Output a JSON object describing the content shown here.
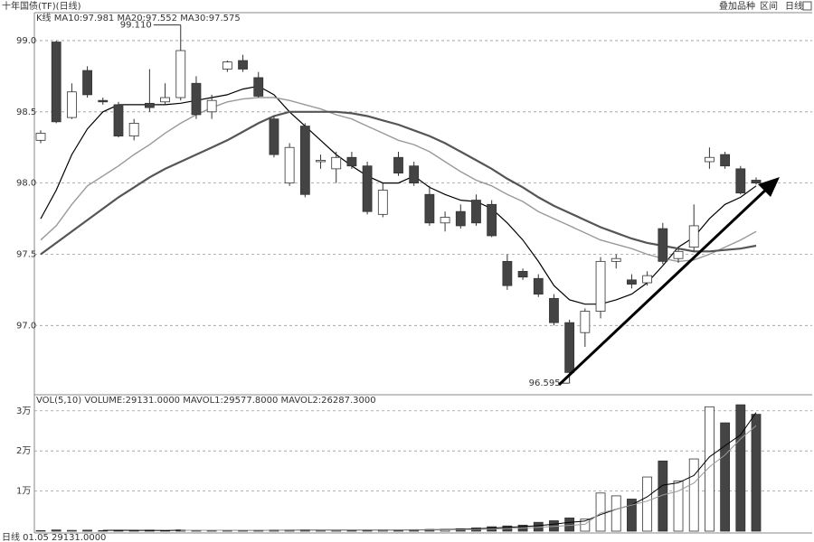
{
  "toolbar": [
    "叠加品种",
    "区间",
    "日线"
  ],
  "footer": "日线 01.05 29131.0000",
  "chart_data": [
    {
      "type": "candlestick",
      "title": "十年国债(TF)(日线)",
      "subtitle": "K线 MA10:97.981 MA20:97.552 MA30:97.575",
      "high_label": "99.110",
      "low_label": "96.595",
      "up_color": "#ffffff",
      "down_color": "#444444",
      "open": [
        98.3,
        98.99,
        98.46,
        98.79,
        98.58,
        98.55,
        98.33,
        98.56,
        98.57,
        98.6,
        98.7,
        98.5,
        98.8,
        98.86,
        98.74,
        98.45,
        98.0,
        98.4,
        98.15,
        98.1,
        98.18,
        98.12,
        97.78,
        98.18,
        98.12,
        97.92,
        97.72,
        97.8,
        97.88,
        97.85,
        97.45,
        97.38,
        97.33,
        97.19,
        97.02,
        96.95,
        97.1,
        97.45,
        97.32,
        97.3,
        97.68,
        97.47,
        97.55,
        98.15,
        98.2,
        98.1,
        98.02
      ],
      "high": [
        98.37,
        99.0,
        98.7,
        98.82,
        98.6,
        98.57,
        98.45,
        98.8,
        98.7,
        99.11,
        98.75,
        98.62,
        98.86,
        98.9,
        98.78,
        98.47,
        98.28,
        98.42,
        98.2,
        98.22,
        98.22,
        98.15,
        98.0,
        98.22,
        98.15,
        97.98,
        97.8,
        97.85,
        97.92,
        97.88,
        97.5,
        97.4,
        97.36,
        97.22,
        97.04,
        97.12,
        97.48,
        97.5,
        97.36,
        97.38,
        97.72,
        97.55,
        97.85,
        98.25,
        98.22,
        98.12,
        98.04
      ],
      "low": [
        98.28,
        98.42,
        98.45,
        98.6,
        98.55,
        98.32,
        98.3,
        98.5,
        98.55,
        98.58,
        98.45,
        98.45,
        98.78,
        98.78,
        98.6,
        98.18,
        97.98,
        97.9,
        98.1,
        98.0,
        98.1,
        97.78,
        97.76,
        98.05,
        97.98,
        97.7,
        97.66,
        97.68,
        97.7,
        97.62,
        97.25,
        97.32,
        97.2,
        97.0,
        96.595,
        96.85,
        97.05,
        97.4,
        97.26,
        97.28,
        97.43,
        97.44,
        97.52,
        98.1,
        98.1,
        97.92,
        97.99
      ],
      "close": [
        98.35,
        98.43,
        98.64,
        98.62,
        98.57,
        98.33,
        98.42,
        98.53,
        98.6,
        98.93,
        98.48,
        98.58,
        98.85,
        98.8,
        98.61,
        98.2,
        98.25,
        97.92,
        98.16,
        98.18,
        98.12,
        97.8,
        97.95,
        98.07,
        98.0,
        97.72,
        97.76,
        97.7,
        97.72,
        97.63,
        97.28,
        97.34,
        97.22,
        97.02,
        96.67,
        97.1,
        97.45,
        97.47,
        97.29,
        97.35,
        97.45,
        97.52,
        97.7,
        98.18,
        98.12,
        97.93,
        98.0
      ],
      "series": [
        {
          "color": "#000000",
          "width": 1.2,
          "values": [
            97.75,
            97.95,
            98.2,
            98.38,
            98.5,
            98.55,
            98.55,
            98.55,
            98.55,
            98.56,
            98.58,
            98.6,
            98.62,
            98.66,
            98.68,
            98.62,
            98.5,
            98.4,
            98.3,
            98.2,
            98.12,
            98.05,
            98.0,
            98.0,
            98.05,
            97.97,
            97.92,
            97.88,
            97.87,
            97.82,
            97.72,
            97.6,
            97.45,
            97.28,
            97.18,
            97.15,
            97.15,
            97.18,
            97.22,
            97.3,
            97.42,
            97.55,
            97.62,
            97.75,
            97.85,
            97.9,
            97.98
          ]
        },
        {
          "color": "#999999",
          "width": 1.4,
          "values": [
            97.6,
            97.7,
            97.85,
            97.98,
            98.05,
            98.12,
            98.2,
            98.27,
            98.35,
            98.42,
            98.48,
            98.53,
            98.57,
            98.59,
            98.6,
            98.6,
            98.58,
            98.55,
            98.52,
            98.48,
            98.45,
            98.4,
            98.35,
            98.3,
            98.27,
            98.22,
            98.15,
            98.08,
            98.02,
            97.98,
            97.92,
            97.87,
            97.8,
            97.75,
            97.7,
            97.65,
            97.6,
            97.57,
            97.54,
            97.5,
            97.47,
            97.45,
            97.46,
            97.5,
            97.55,
            97.6,
            97.66
          ]
        },
        {
          "color": "#555555",
          "width": 2.2,
          "values": [
            97.5,
            97.58,
            97.66,
            97.74,
            97.82,
            97.9,
            97.97,
            98.04,
            98.1,
            98.15,
            98.2,
            98.25,
            98.3,
            98.36,
            98.42,
            98.47,
            98.5,
            98.5,
            98.5,
            98.5,
            98.49,
            98.47,
            98.44,
            98.41,
            98.37,
            98.33,
            98.28,
            98.22,
            98.16,
            98.1,
            98.03,
            97.97,
            97.9,
            97.84,
            97.79,
            97.74,
            97.69,
            97.65,
            97.61,
            97.58,
            97.56,
            97.54,
            97.52,
            97.52,
            97.53,
            97.54,
            97.56
          ]
        }
      ],
      "ylim": [
        96.52,
        99.19
      ],
      "yticks": [
        {
          "value": 99,
          "label": "99.0"
        },
        {
          "value": 98.5,
          "label": "98.5"
        },
        {
          "value": 98,
          "label": "98.0"
        },
        {
          "value": 97.5,
          "label": "97.5"
        },
        {
          "value": 97,
          "label": "97.0"
        }
      ],
      "grid": true
    },
    {
      "type": "bar",
      "title": "VOL(5,10) VOLUME:29131.0000 MAVOL1:29577.8000 MAVOL2:26287.3000",
      "series": [
        {
          "type": "bar",
          "values": [
            150,
            300,
            200,
            250,
            150,
            180,
            200,
            250,
            150,
            300,
            220,
            180,
            150,
            200,
            260,
            300,
            280,
            350,
            200,
            220,
            260,
            300,
            350,
            300,
            380,
            420,
            450,
            600,
            800,
            1100,
            1300,
            1500,
            2200,
            2600,
            3300,
            3000,
            9500,
            8800,
            8000,
            13500,
            17500,
            12500,
            18000,
            31000,
            27000,
            31500,
            29131
          ]
        },
        {
          "type": "line",
          "color": "#000000",
          "values": [
            null,
            null,
            null,
            null,
            210,
            216,
            196,
            206,
            190,
            222,
            224,
            220,
            214,
            210,
            202,
            228,
            238,
            268,
            278,
            270,
            262,
            266,
            286,
            286,
            304,
            352,
            380,
            470,
            610,
            770,
            940,
            1120,
            1380,
            1740,
            2180,
            2520,
            4120,
            5440,
            6540,
            8560,
            11460,
            12060,
            13900,
            18500,
            21300,
            24000,
            29578
          ]
        },
        {
          "type": "line",
          "color": "#999999",
          "values": [
            null,
            null,
            null,
            null,
            null,
            null,
            null,
            null,
            null,
            220,
            222,
            225,
            228,
            230,
            232,
            236,
            240,
            245,
            250,
            255,
            260,
            265,
            270,
            275,
            280,
            290,
            310,
            360,
            440,
            540,
            650,
            780,
            960,
            1180,
            1440,
            1720,
            4500,
            5500,
            6500,
            7500,
            9000,
            10000,
            12000,
            16000,
            19000,
            23000,
            26287
          ]
        }
      ],
      "ylim": [
        0,
        34000
      ],
      "yticks": [
        {
          "value": 30000,
          "label": "3万"
        },
        {
          "value": 20000,
          "label": "2万"
        },
        {
          "value": 10000,
          "label": "1万"
        }
      ],
      "grid": true
    }
  ]
}
